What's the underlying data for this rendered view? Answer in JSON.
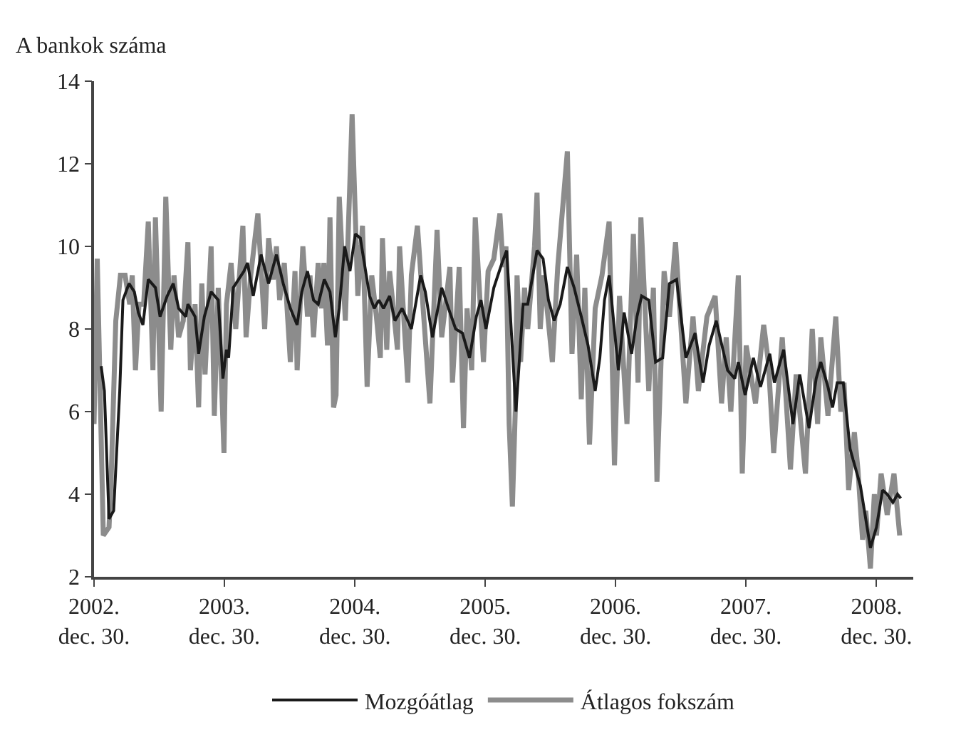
{
  "chart_data": {
    "type": "line",
    "ylabel": "A bankok száma",
    "xlim": [
      "2002-12-30",
      "2009-04-12"
    ],
    "xticks": [
      {
        "value": "2002-12-30",
        "label": "2002.\ndec. 30."
      },
      {
        "value": "2003-12-30",
        "label": "2003.\ndec. 30."
      },
      {
        "value": "2004-12-30",
        "label": "2004.\ndec. 30."
      },
      {
        "value": "2005-12-30",
        "label": "2005.\ndec. 30."
      },
      {
        "value": "2006-12-30",
        "label": "2006.\ndec. 30."
      },
      {
        "value": "2007-12-30",
        "label": "2007.\ndec. 30."
      },
      {
        "value": "2008-12-30",
        "label": "2008.\ndec. 30."
      }
    ],
    "ylim": [
      2,
      14
    ],
    "yticks": [
      2,
      4,
      6,
      8,
      10,
      12,
      14
    ],
    "legend": "bottom",
    "marker": "none",
    "line_style": "solid",
    "series": [
      {
        "name": "Mozgóátlag",
        "color": "#1a1a1a",
        "x": [
          "2003-01-19",
          "2003-01-28",
          "2003-02-10",
          "2003-02-23",
          "2003-03-12",
          "2003-03-21",
          "2003-04-07",
          "2003-04-22",
          "2003-05-03",
          "2003-05-16",
          "2003-05-31",
          "2003-06-20",
          "2003-07-03",
          "2003-07-23",
          "2003-08-09",
          "2003-08-24",
          "2003-09-13",
          "2003-09-19",
          "2003-10-09",
          "2003-10-19",
          "2003-11-04",
          "2003-11-23",
          "2003-12-13",
          "2003-12-26",
          "2004-01-05",
          "2004-01-11",
          "2004-01-24",
          "2004-02-23",
          "2004-03-04",
          "2004-03-20",
          "2004-04-11",
          "2004-05-02",
          "2004-05-24",
          "2004-06-12",
          "2004-07-02",
          "2004-07-21",
          "2004-08-03",
          "2004-08-19",
          "2004-09-05",
          "2004-09-18",
          "2004-10-05",
          "2004-10-21",
          "2004-11-05",
          "2004-11-16",
          "2004-12-01",
          "2004-12-16",
          "2004-12-31",
          "2005-01-14",
          "2005-01-27",
          "2005-02-09",
          "2005-02-22",
          "2005-03-07",
          "2005-03-20",
          "2005-04-06",
          "2005-04-21",
          "2005-05-11",
          "2005-06-06",
          "2005-07-02",
          "2005-07-15",
          "2005-08-04",
          "2005-08-30",
          "2005-09-18",
          "2005-10-08",
          "2005-10-27",
          "2005-11-16",
          "2005-12-05",
          "2005-12-18",
          "2006-01-01",
          "2006-01-23",
          "2006-02-15",
          "2006-02-28",
          "2006-03-26",
          "2006-04-15",
          "2006-04-28",
          "2006-05-24",
          "2006-06-10",
          "2006-06-25",
          "2006-07-11",
          "2006-07-28",
          "2006-08-17",
          "2006-09-05",
          "2006-09-25",
          "2006-10-14",
          "2006-11-03",
          "2006-11-16",
          "2006-11-29",
          "2006-12-12",
          "2007-01-07",
          "2007-01-23",
          "2007-02-13",
          "2007-02-28",
          "2007-03-13",
          "2007-04-02",
          "2007-04-21",
          "2007-05-11",
          "2007-05-30",
          "2007-06-19",
          "2007-07-15",
          "2007-08-10",
          "2007-09-01",
          "2007-09-18",
          "2007-10-08",
          "2007-11-09",
          "2007-11-29",
          "2007-12-09",
          "2007-12-28",
          "2008-01-20",
          "2008-02-09",
          "2008-03-06",
          "2008-03-19",
          "2008-04-14",
          "2008-05-10",
          "2008-05-29",
          "2008-06-24",
          "2008-07-14",
          "2008-07-27",
          "2008-08-16",
          "2008-08-29",
          "2008-09-11",
          "2008-09-28",
          "2008-10-17",
          "2008-11-15",
          "2008-12-13",
          "2008-12-30",
          "2009-01-16",
          "2009-01-29",
          "2009-02-14",
          "2009-02-27",
          "2009-03-08"
        ],
        "values": [
          7.1,
          6.5,
          3.4,
          3.6,
          6.5,
          8.7,
          9.1,
          8.9,
          8.4,
          8.1,
          9.2,
          9.0,
          8.3,
          8.8,
          9.1,
          8.5,
          8.3,
          8.6,
          8.3,
          7.4,
          8.3,
          8.9,
          8.7,
          6.8,
          7.5,
          7.3,
          9.0,
          9.4,
          9.6,
          8.8,
          9.8,
          9.1,
          9.8,
          9.1,
          8.5,
          8.1,
          8.9,
          9.4,
          8.7,
          8.6,
          9.2,
          8.9,
          7.8,
          8.5,
          10.0,
          9.4,
          10.3,
          10.2,
          9.5,
          8.8,
          8.5,
          8.7,
          8.5,
          8.8,
          8.2,
          8.5,
          8.0,
          9.3,
          8.9,
          7.8,
          9.0,
          8.5,
          8.0,
          7.9,
          7.3,
          8.3,
          8.7,
          8.0,
          9.0,
          9.6,
          9.9,
          6.0,
          8.6,
          8.6,
          9.9,
          9.7,
          8.7,
          8.2,
          8.6,
          9.5,
          9.0,
          8.3,
          7.6,
          6.5,
          7.3,
          8.7,
          9.3,
          7.0,
          8.4,
          7.4,
          8.3,
          8.8,
          8.7,
          7.2,
          7.3,
          9.1,
          9.2,
          7.3,
          7.9,
          6.7,
          7.6,
          8.2,
          7.0,
          6.8,
          7.2,
          6.4,
          7.3,
          6.6,
          7.4,
          6.7,
          7.5,
          5.7,
          6.9,
          5.6,
          6.8,
          7.2,
          6.6,
          6.1,
          6.7,
          6.7,
          5.1,
          4.2,
          2.7,
          3.2,
          4.1,
          4.0,
          3.8,
          4.0,
          3.9
        ]
      },
      {
        "name": "Átlagos fokszám",
        "color": "#8c8c8c",
        "x": [
          "2002-12-30",
          "2003-01-08",
          "2003-01-25",
          "2003-02-10",
          "2003-02-16",
          "2003-03-01",
          "2003-03-14",
          "2003-03-27",
          "2003-04-09",
          "2003-04-16",
          "2003-04-25",
          "2003-05-05",
          "2003-05-18",
          "2003-05-31",
          "2003-06-13",
          "2003-06-20",
          "2003-07-06",
          "2003-07-19",
          "2003-08-02",
          "2003-08-11",
          "2003-08-24",
          "2003-09-06",
          "2003-09-19",
          "2003-09-26",
          "2003-10-09",
          "2003-10-19",
          "2003-10-28",
          "2003-11-06",
          "2003-11-23",
          "2003-12-02",
          "2003-12-13",
          "2003-12-29",
          "2004-01-05",
          "2004-01-18",
          "2004-01-31",
          "2004-02-20",
          "2004-02-29",
          "2004-03-13",
          "2004-04-02",
          "2004-04-21",
          "2004-05-02",
          "2004-05-15",
          "2004-05-24",
          "2004-06-02",
          "2004-06-15",
          "2004-07-02",
          "2004-07-15",
          "2004-07-21",
          "2004-08-06",
          "2004-08-19",
          "2004-08-26",
          "2004-09-05",
          "2004-09-18",
          "2004-09-27",
          "2004-10-04",
          "2004-10-14",
          "2004-10-21",
          "2004-10-31",
          "2004-11-07",
          "2004-11-16",
          "2004-12-03",
          "2004-12-22",
          "2005-01-07",
          "2005-01-20",
          "2005-02-02",
          "2005-02-15",
          "2005-02-28",
          "2005-03-11",
          "2005-03-17",
          "2005-03-29",
          "2005-04-06",
          "2005-04-28",
          "2005-05-04",
          "2005-05-17",
          "2005-05-27",
          "2005-06-06",
          "2005-06-23",
          "2005-07-09",
          "2005-07-28",
          "2005-08-17",
          "2005-08-30",
          "2005-09-22",
          "2005-09-29",
          "2005-10-18",
          "2005-10-30",
          "2005-11-09",
          "2005-11-22",
          "2005-12-02",
          "2005-12-25",
          "2006-01-07",
          "2006-01-23",
          "2006-02-09",
          "2006-02-18",
          "2006-02-26",
          "2006-03-07",
          "2006-03-16",
          "2006-03-24",
          "2006-03-29",
          "2006-04-08",
          "2006-04-19",
          "2006-04-28",
          "2006-05-17",
          "2006-05-24",
          "2006-06-02",
          "2006-06-12",
          "2006-07-06",
          "2006-07-21",
          "2006-08-17",
          "2006-08-30",
          "2006-09-12",
          "2006-09-25",
          "2006-10-05",
          "2006-10-18",
          "2006-11-03",
          "2006-11-22",
          "2006-12-12",
          "2006-12-27",
          "2007-01-10",
          "2007-01-31",
          "2007-02-18",
          "2007-03-03",
          "2007-03-11",
          "2007-04-02",
          "2007-04-15",
          "2007-04-25",
          "2007-05-15",
          "2007-05-30",
          "2007-06-16",
          "2007-07-15",
          "2007-08-04",
          "2007-08-19",
          "2007-09-12",
          "2007-10-05",
          "2007-10-23",
          "2007-11-05",
          "2007-11-18",
          "2007-12-09",
          "2007-12-20",
          "2007-12-31",
          "2008-01-26",
          "2008-02-18",
          "2008-03-02",
          "2008-03-17",
          "2008-04-10",
          "2008-05-03",
          "2008-05-19",
          "2008-06-14",
          "2008-07-03",
          "2008-07-18",
          "2008-07-27",
          "2008-08-16",
          "2008-09-07",
          "2008-09-21",
          "2008-09-30",
          "2008-10-13",
          "2008-10-29",
          "2008-11-08",
          "2008-11-21",
          "2008-11-30",
          "2008-12-13",
          "2008-12-24",
          "2008-12-30",
          "2009-01-12",
          "2009-01-29",
          "2009-02-17",
          "2009-03-05"
        ],
        "values": [
          5.7,
          9.7,
          3.0,
          3.2,
          4.4,
          8.2,
          9.3,
          9.3,
          8.6,
          9.3,
          7.0,
          8.6,
          8.6,
          10.6,
          7.0,
          10.7,
          6.0,
          11.2,
          7.5,
          9.3,
          7.8,
          8.2,
          10.1,
          7.0,
          8.6,
          6.1,
          9.1,
          6.9,
          10.0,
          5.9,
          9.0,
          5.0,
          8.6,
          9.6,
          8.0,
          10.5,
          7.8,
          9.3,
          10.8,
          8.0,
          10.2,
          9.2,
          10.0,
          8.7,
          9.6,
          7.2,
          9.4,
          7.0,
          10.0,
          8.3,
          9.3,
          7.8,
          9.6,
          8.5,
          9.6,
          7.6,
          10.7,
          6.1,
          6.4,
          11.2,
          8.2,
          13.2,
          8.8,
          10.5,
          6.6,
          9.3,
          8.3,
          7.3,
          10.2,
          7.5,
          9.4,
          7.5,
          10.0,
          8.1,
          6.7,
          9.3,
          10.5,
          8.5,
          6.2,
          10.4,
          7.8,
          9.5,
          6.7,
          9.5,
          5.6,
          8.5,
          7.0,
          10.7,
          7.2,
          9.4,
          9.7,
          10.8,
          9.5,
          10.0,
          5.7,
          3.7,
          6.0,
          9.3,
          7.2,
          9.0,
          8.0,
          10.0,
          11.3,
          8.0,
          9.3,
          7.2,
          9.5,
          12.3,
          7.4,
          9.8,
          6.3,
          9.0,
          5.2,
          8.5,
          9.3,
          10.6,
          4.7,
          8.8,
          5.7,
          10.3,
          6.7,
          10.7,
          6.5,
          9.0,
          4.3,
          9.4,
          8.3,
          10.1,
          6.2,
          8.3,
          6.5,
          8.3,
          8.8,
          6.2,
          7.8,
          6.0,
          9.3,
          4.5,
          7.6,
          6.2,
          8.1,
          7.2,
          5.0,
          7.8,
          4.6,
          6.9,
          4.5,
          8.0,
          5.7,
          7.8,
          5.9,
          8.3,
          6.0,
          6.7,
          4.1,
          5.5,
          4.6,
          2.9,
          3.6,
          2.2,
          4.0,
          3.0,
          4.5,
          3.5,
          4.5,
          3.0
        ]
      }
    ]
  }
}
